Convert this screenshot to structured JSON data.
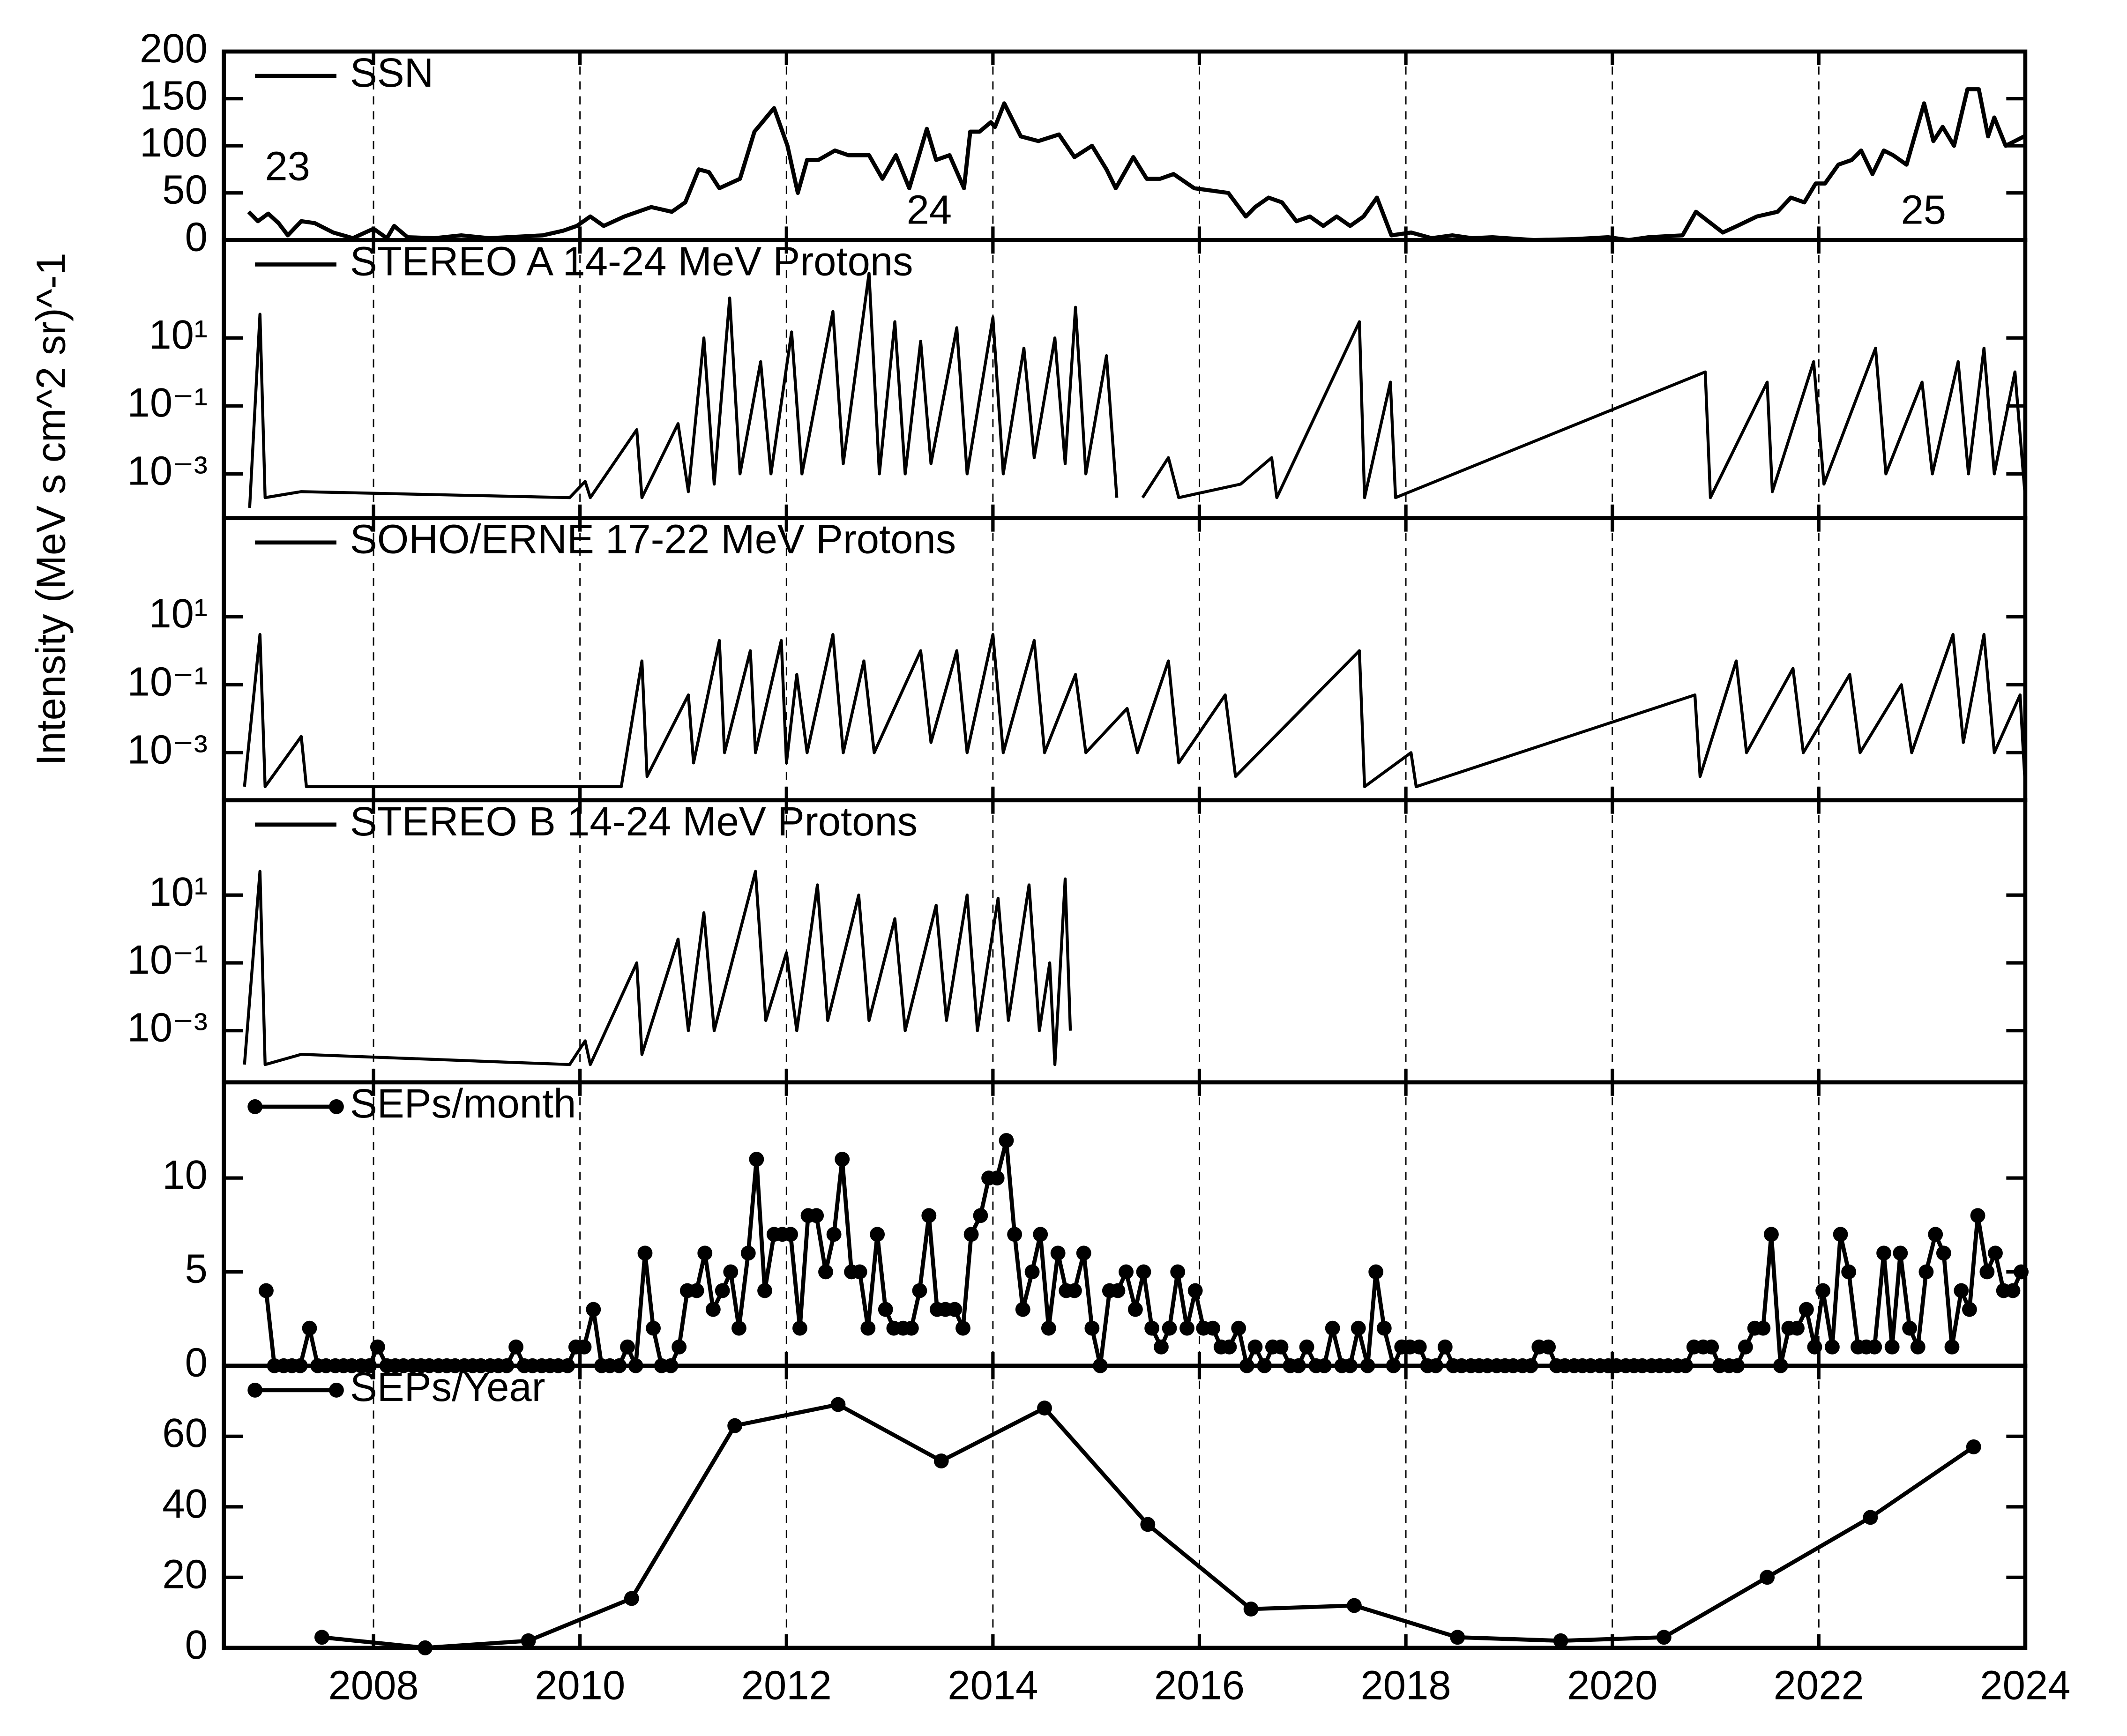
{
  "chart_data": [
    {
      "type": "line",
      "xlim": [
        2006.55,
        2024
      ],
      "ylim": [
        0,
        200
      ],
      "yticks": [
        0,
        50,
        100,
        150,
        200
      ],
      "annotations": [
        "23",
        "24",
        "25"
      ],
      "x": [
        2006.79,
        2006.88,
        2006.98,
        2007.08,
        2007.17,
        2007.3,
        2007.43,
        2007.61,
        2007.8,
        2008,
        2008.13,
        2008.2,
        2008.33,
        2008.59,
        2008.85,
        2009.12,
        2009.64,
        2009.84,
        2009.97,
        2010.1,
        2010.23,
        2010.43,
        2010.69,
        2010.89,
        2011.02,
        2011.15,
        2011.25,
        2011.35,
        2011.55,
        2011.69,
        2011.88,
        2012.01,
        2012.11,
        2012.2,
        2012.31,
        2012.47,
        2012.6,
        2012.8,
        2012.93,
        2013.06,
        2013.19,
        2013.36,
        2013.45,
        2013.58,
        2013.72,
        2013.78,
        2013.87,
        2013.98,
        2014.02,
        2014.11,
        2014.27,
        2014.44,
        2014.64,
        2014.79,
        2014.96,
        2015.1,
        2015.19,
        2015.36,
        2015.49,
        2015.62,
        2015.75,
        2015.95,
        2016.28,
        2016.45,
        2016.54,
        2016.67,
        2016.8,
        2016.94,
        2017.07,
        2017.2,
        2017.33,
        2017.46,
        2017.59,
        2017.72,
        2017.86,
        2018.05,
        2018.25,
        2018.45,
        2018.64,
        2018.84,
        2019.24,
        2019.63,
        2019.96,
        2020.16,
        2020.35,
        2020.68,
        2020.81,
        2021.07,
        2021.21,
        2021.4,
        2021.6,
        2021.73,
        2021.86,
        2021.97,
        2022.06,
        2022.19,
        2022.32,
        2022.41,
        2022.52,
        2022.63,
        2022.72,
        2022.85,
        2023.02,
        2023.11,
        2023.2,
        2023.31,
        2023.44,
        2023.55,
        2023.64,
        2023.7,
        2023.81,
        2023.99
      ],
      "series": [
        {
          "name": "SSN",
          "color": "#000000",
          "values": [
            30,
            20,
            28,
            18,
            5,
            20,
            18,
            8,
            2,
            12,
            2,
            15,
            3,
            2,
            5,
            2,
            5,
            10,
            15,
            25,
            15,
            25,
            35,
            30,
            40,
            75,
            72,
            55,
            65,
            115,
            140,
            100,
            50,
            85,
            85,
            95,
            90,
            90,
            65,
            90,
            55,
            118,
            85,
            90,
            55,
            115,
            115,
            125,
            120,
            145,
            110,
            105,
            112,
            88,
            100,
            75,
            55,
            88,
            65,
            65,
            70,
            55,
            50,
            25,
            35,
            45,
            40,
            20,
            25,
            15,
            25,
            15,
            25,
            45,
            5,
            8,
            2,
            5,
            2,
            3,
            0,
            1,
            3,
            0,
            3,
            5,
            30,
            8,
            15,
            25,
            30,
            45,
            40,
            60,
            60,
            80,
            85,
            95,
            70,
            95,
            90,
            80,
            145,
            105,
            120,
            100,
            160,
            160,
            110,
            130,
            100,
            110
          ]
        }
      ]
    },
    {
      "type": "line",
      "log": true,
      "ylabel": "Intensity (MeV s cm^2 sr)^-1",
      "xlim": [
        2006.55,
        2024
      ],
      "ylim": [
        5e-05,
        7600
      ],
      "yticks": [
        {
          "value": 0.001,
          "label": "10⁻³"
        },
        {
          "value": 0.1,
          "label": "10⁻¹"
        },
        {
          "value": 10,
          "label": "10¹"
        }
      ],
      "x": [
        2006.8,
        2006.9,
        2006.95,
        2007.3,
        2009.9,
        2010.05,
        2010.1,
        2010.55,
        2010.6,
        2010.95,
        2011.05,
        2011.2,
        2011.3,
        2011.45,
        2011.55,
        2011.75,
        2011.85,
        2012.05,
        2012.15,
        2012.45,
        2012.55,
        2012.8,
        2012.9,
        2013.05,
        2013.15,
        2013.3,
        2013.4,
        2013.65,
        2013.75,
        2014,
        2014.1,
        2014.3,
        2014.4,
        2014.6,
        2014.7,
        2014.8,
        2014.9,
        2015.1,
        2015.2,
        2015.3,
        2015.45,
        2015.7,
        2015.8,
        2016.4,
        2016.7,
        2016.75,
        2017.55,
        2017.6,
        2017.85,
        2017.9,
        2020.9,
        2020.95,
        2021.5,
        2021.55,
        2021.95,
        2022.05,
        2022.55,
        2022.65,
        2023,
        2023.1,
        2023.35,
        2023.45,
        2023.6,
        2023.7,
        2023.9,
        2024
      ],
      "series": [
        {
          "name": "STEREO A 14-24 MeV Protons",
          "color": "#000000",
          "values": [
            0.0001,
            50,
            0.0002,
            0.0003,
            0.0002,
            0.0006,
            0.0002,
            0.02,
            0.0002,
            0.03,
            0.0003,
            10,
            0.0005,
            150,
            0.001,
            2,
            0.001,
            15,
            0.001,
            60,
            0.002,
            800,
            0.001,
            30,
            0.001,
            8,
            0.002,
            20,
            0.001,
            40,
            0.001,
            5,
            0.003,
            10,
            0.002,
            80,
            0.001,
            3,
            0.0002,
            null,
            0.0002,
            0.003,
            0.0002,
            0.0005,
            0.003,
            0.0002,
            30,
            0.0002,
            0.5,
            0.0002,
            1,
            0.0002,
            0.5,
            0.0003,
            2,
            0.0005,
            5,
            0.001,
            0.5,
            0.001,
            2,
            0.001,
            5,
            0.001,
            1,
            0.0002
          ]
        }
      ]
    },
    {
      "type": "line",
      "log": true,
      "xlim": [
        2006.55,
        2024
      ],
      "ylim": [
        4e-05,
        8000
      ],
      "yticks": [
        {
          "value": 0.001,
          "label": "10⁻³"
        },
        {
          "value": 0.1,
          "label": "10⁻¹"
        },
        {
          "value": 10,
          "label": "10¹"
        }
      ],
      "x": [
        2006.75,
        2006.9,
        2006.95,
        2007.3,
        2007.35,
        2010.4,
        2010.6,
        2010.65,
        2011.05,
        2011.1,
        2011.35,
        2011.4,
        2011.65,
        2011.7,
        2011.95,
        2012,
        2012.1,
        2012.2,
        2012.45,
        2012.55,
        2012.75,
        2012.85,
        2013.3,
        2013.4,
        2013.65,
        2013.75,
        2014,
        2014.1,
        2014.4,
        2014.5,
        2014.8,
        2014.9,
        2015.3,
        2015.4,
        2015.7,
        2015.8,
        2016.25,
        2016.35,
        2017.55,
        2017.6,
        2018.05,
        2018.1,
        2020.8,
        2020.85,
        2021.2,
        2021.3,
        2021.75,
        2021.85,
        2022.3,
        2022.4,
        2022.8,
        2022.9,
        2023.3,
        2023.4,
        2023.6,
        2023.7,
        2023.95,
        2024
      ],
      "series": [
        {
          "name": "SOHO/ERNE 17-22 MeV Protons",
          "color": "#000000",
          "values": [
            0.0001,
            3,
            0.0001,
            0.003,
            0.0001,
            0.0001,
            0.5,
            0.0002,
            0.05,
            0.0005,
            2,
            0.001,
            1,
            0.001,
            2,
            0.0005,
            0.2,
            0.001,
            3,
            0.001,
            0.5,
            0.001,
            1,
            0.002,
            1,
            0.001,
            3,
            0.001,
            2,
            0.001,
            0.2,
            0.001,
            0.02,
            0.001,
            0.5,
            0.0005,
            0.05,
            0.0002,
            1,
            0.0001,
            0.001,
            0.0001,
            0.05,
            0.0002,
            0.5,
            0.001,
            0.3,
            0.001,
            0.2,
            0.001,
            0.1,
            0.001,
            3,
            0.002,
            3,
            0.001,
            0.05,
            0.0001
          ]
        }
      ]
    },
    {
      "type": "line",
      "log": true,
      "xlim": [
        2006.55,
        2024
      ],
      "ylim": [
        3e-05,
        6300
      ],
      "yticks": [
        {
          "value": 0.001,
          "label": "10⁻³"
        },
        {
          "value": 0.1,
          "label": "10⁻¹"
        },
        {
          "value": 10,
          "label": "10¹"
        }
      ],
      "x": [
        2006.75,
        2006.9,
        2006.95,
        2007.3,
        2009.9,
        2010.05,
        2010.1,
        2010.55,
        2010.6,
        2010.95,
        2011.05,
        2011.2,
        2011.3,
        2011.7,
        2011.8,
        2012,
        2012.1,
        2012.3,
        2012.4,
        2012.7,
        2012.8,
        2013.05,
        2013.15,
        2013.45,
        2013.55,
        2013.75,
        2013.85,
        2014.05,
        2014.15,
        2014.35,
        2014.45,
        2014.55,
        2014.6,
        2014.7,
        2014.75
      ],
      "series": [
        {
          "name": "STEREO B 14-24 MeV Protons",
          "color": "#000000",
          "values": [
            0.0001,
            50,
            0.0001,
            0.0002,
            0.0001,
            0.0005,
            0.0001,
            0.1,
            0.0002,
            0.5,
            0.001,
            3,
            0.001,
            50,
            0.002,
            0.2,
            0.001,
            20,
            0.002,
            10,
            0.002,
            2,
            0.001,
            5,
            0.002,
            10,
            0.001,
            8,
            0.002,
            20,
            0.001,
            0.1,
            0.0001,
            30,
            0.001
          ]
        }
      ]
    },
    {
      "type": "line",
      "markers": true,
      "xlim": [
        2006.55,
        2024
      ],
      "ylim": [
        0,
        15.1
      ],
      "yticks": [
        0,
        5,
        10
      ],
      "x": [
        2006.96,
        2007.04,
        2007.13,
        2007.21,
        2007.29,
        2007.38,
        2007.46,
        2007.54,
        2007.63,
        2007.71,
        2007.79,
        2007.88,
        2007.96,
        2008.04,
        2008.13,
        2008.21,
        2008.29,
        2008.38,
        2008.46,
        2008.54,
        2008.63,
        2008.71,
        2008.79,
        2008.88,
        2008.96,
        2009.04,
        2009.13,
        2009.21,
        2009.29,
        2009.38,
        2009.46,
        2009.54,
        2009.63,
        2009.71,
        2009.79,
        2009.88,
        2009.96,
        2010.04,
        2010.13,
        2010.21,
        2010.29,
        2010.38,
        2010.46,
        2010.54,
        2010.63,
        2010.71,
        2010.79,
        2010.88,
        2010.96,
        2011.04,
        2011.13,
        2011.21,
        2011.29,
        2011.38,
        2011.46,
        2011.54,
        2011.63,
        2011.71,
        2011.79,
        2011.88,
        2011.96,
        2012.04,
        2012.13,
        2012.21,
        2012.29,
        2012.38,
        2012.46,
        2012.54,
        2012.63,
        2012.71,
        2012.79,
        2012.88,
        2012.96,
        2013.04,
        2013.13,
        2013.21,
        2013.29,
        2013.38,
        2013.46,
        2013.54,
        2013.63,
        2013.71,
        2013.79,
        2013.88,
        2013.96,
        2014.04,
        2014.13,
        2014.21,
        2014.29,
        2014.38,
        2014.46,
        2014.54,
        2014.63,
        2014.71,
        2014.79,
        2014.88,
        2014.96,
        2015.04,
        2015.13,
        2015.21,
        2015.29,
        2015.38,
        2015.46,
        2015.54,
        2015.63,
        2015.71,
        2015.79,
        2015.88,
        2015.96,
        2016.04,
        2016.13,
        2016.21,
        2016.29,
        2016.38,
        2016.46,
        2016.54,
        2016.63,
        2016.71,
        2016.79,
        2016.88,
        2016.96,
        2017.04,
        2017.13,
        2017.21,
        2017.29,
        2017.38,
        2017.46,
        2017.54,
        2017.63,
        2017.71,
        2017.79,
        2017.88,
        2017.96,
        2018.04,
        2018.13,
        2018.21,
        2018.29,
        2018.38,
        2018.46,
        2018.54,
        2018.63,
        2018.71,
        2018.79,
        2018.88,
        2018.96,
        2019.04,
        2019.13,
        2019.21,
        2019.29,
        2019.38,
        2019.46,
        2019.54,
        2019.63,
        2019.71,
        2019.79,
        2019.88,
        2019.96,
        2020.04,
        2020.13,
        2020.21,
        2020.29,
        2020.38,
        2020.46,
        2020.54,
        2020.63,
        2020.71,
        2020.79,
        2020.88,
        2020.96,
        2021.04,
        2021.13,
        2021.21,
        2021.29,
        2021.38,
        2021.46,
        2021.54,
        2021.63,
        2021.71,
        2021.79,
        2021.88,
        2021.96,
        2022.04,
        2022.13,
        2022.21,
        2022.29,
        2022.38,
        2022.46,
        2022.54,
        2022.63,
        2022.71,
        2022.79,
        2022.88,
        2022.96,
        2023.04,
        2023.13,
        2023.21,
        2023.29,
        2023.38,
        2023.46,
        2023.54,
        2023.63,
        2023.71,
        2023.79,
        2023.88,
        2023.96
      ],
      "series": [
        {
          "name": "SEPs/month",
          "color": "#000000",
          "values": [
            4,
            0,
            0,
            0,
            0,
            2,
            0,
            0,
            0,
            0,
            0,
            0,
            0,
            1,
            0,
            0,
            0,
            0,
            0,
            0,
            0,
            0,
            0,
            0,
            0,
            0,
            0,
            0,
            0,
            1,
            0,
            0,
            0,
            0,
            0,
            0,
            1,
            1,
            3,
            0,
            0,
            0,
            1,
            0,
            6,
            2,
            0,
            0,
            1,
            4,
            4,
            6,
            3,
            4,
            5,
            2,
            6,
            11,
            4,
            7,
            7,
            7,
            2,
            8,
            8,
            5,
            7,
            11,
            5,
            5,
            2,
            7,
            3,
            2,
            2,
            2,
            4,
            8,
            3,
            3,
            3,
            2,
            7,
            8,
            10,
            10,
            12,
            7,
            3,
            5,
            7,
            2,
            6,
            4,
            4,
            6,
            2,
            0,
            4,
            4,
            5,
            3,
            5,
            2,
            1,
            2,
            5,
            2,
            4,
            2,
            2,
            1,
            1,
            2,
            0,
            1,
            0,
            1,
            1,
            0,
            0,
            1,
            0,
            0,
            2,
            0,
            0,
            2,
            0,
            5,
            2,
            0,
            1,
            1,
            1,
            0,
            0,
            1,
            0,
            0,
            0,
            0,
            0,
            0,
            0,
            0,
            0,
            0,
            1,
            1,
            0,
            0,
            0,
            0,
            0,
            0,
            0,
            0,
            0,
            0,
            0,
            0,
            0,
            0,
            0,
            0,
            1,
            1,
            1,
            0,
            0,
            0,
            1,
            2,
            2,
            7,
            0,
            2,
            2,
            3,
            1,
            4,
            1,
            7,
            5,
            1,
            1,
            1,
            6,
            1,
            6,
            2,
            1,
            5,
            7,
            6,
            1,
            4,
            3,
            8,
            5,
            6,
            4,
            4,
            5
          ]
        }
      ]
    },
    {
      "type": "line",
      "markers": true,
      "grid": true,
      "xlim": [
        2006.55,
        2024
      ],
      "xticks": [
        2008,
        2010,
        2012,
        2014,
        2016,
        2018,
        2020,
        2022,
        2024
      ],
      "ylim": [
        0,
        80
      ],
      "yticks": [
        0,
        20,
        40,
        60
      ],
      "x": [
        2007.5,
        2008.5,
        2009.5,
        2010.5,
        2011.5,
        2012.5,
        2013.5,
        2014.5,
        2015.5,
        2016.5,
        2017.5,
        2018.5,
        2019.5,
        2020.5,
        2021.5,
        2022.5,
        2023.5
      ],
      "series": [
        {
          "name": "SEPs/Year",
          "color": "#000000",
          "values": [
            3,
            0,
            2,
            14,
            63,
            69,
            53,
            68,
            35,
            11,
            12,
            3,
            2,
            3,
            20,
            37,
            57
          ]
        }
      ]
    }
  ]
}
